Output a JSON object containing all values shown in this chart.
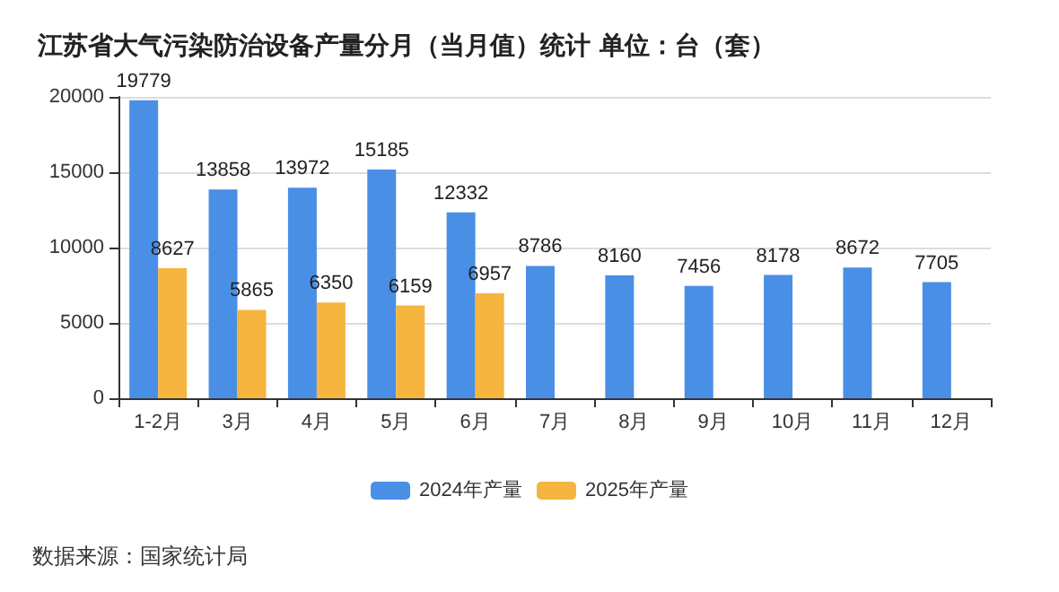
{
  "chart_data": {
    "type": "bar",
    "title": "江苏省大气污染防治设备产量分月（当月值）统计 单位：台（套）",
    "categories": [
      "1-2月",
      "3月",
      "4月",
      "5月",
      "6月",
      "7月",
      "8月",
      "9月",
      "10月",
      "11月",
      "12月"
    ],
    "series": [
      {
        "name": "2024年产量",
        "color": "#4a8fe6",
        "values": [
          19779,
          13858,
          13972,
          15185,
          12332,
          8786,
          8160,
          7456,
          8178,
          8672,
          7705
        ]
      },
      {
        "name": "2025年产量",
        "color": "#f5b53f",
        "values": [
          8627,
          5865,
          6350,
          6159,
          6957,
          null,
          null,
          null,
          null,
          null,
          null
        ]
      }
    ],
    "ylim": [
      0,
      20000
    ],
    "yticks": [
      0,
      5000,
      10000,
      15000,
      20000
    ],
    "grid": "y",
    "legend": "bottom",
    "data_labels": true,
    "annotations": [
      "数据来源：国家统计局"
    ]
  }
}
